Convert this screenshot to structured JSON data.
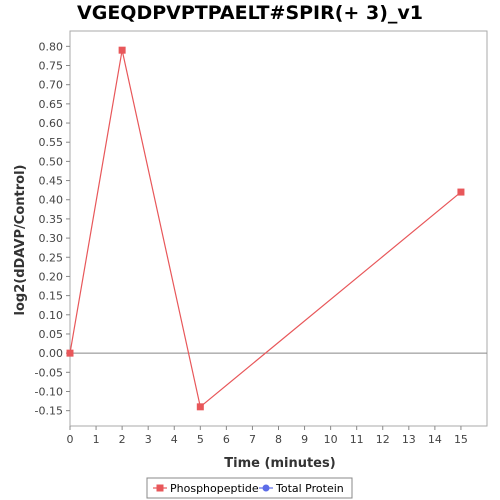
{
  "chart_data": {
    "type": "line",
    "title": "VGEQDPVPTPAELT#SPIR(+ 3)_v1",
    "xlabel": "Time (minutes)",
    "ylabel": "log2(dDAVP/Control)",
    "xlim": [
      0,
      16
    ],
    "ylim": [
      -0.19,
      0.84
    ],
    "xticks": [
      0,
      1,
      2,
      3,
      4,
      5,
      6,
      7,
      8,
      9,
      10,
      11,
      12,
      13,
      14,
      15
    ],
    "yticks": [
      -0.15,
      -0.1,
      -0.05,
      0.0,
      0.05,
      0.1,
      0.15,
      0.2,
      0.25,
      0.3,
      0.35,
      0.4,
      0.45,
      0.5,
      0.55,
      0.6,
      0.65,
      0.7,
      0.75,
      0.8
    ],
    "grid": false,
    "zero_line": true,
    "legend_position": "bottom",
    "series": [
      {
        "name": "Phosphopeptide",
        "color": "#e8575a",
        "marker": "square",
        "x": [
          0,
          2,
          5,
          15
        ],
        "y": [
          0.0,
          0.79,
          -0.14,
          0.42
        ]
      },
      {
        "name": "Total Protein",
        "color": "#5c6ce8",
        "marker": "circle",
        "x": [],
        "y": []
      }
    ]
  }
}
